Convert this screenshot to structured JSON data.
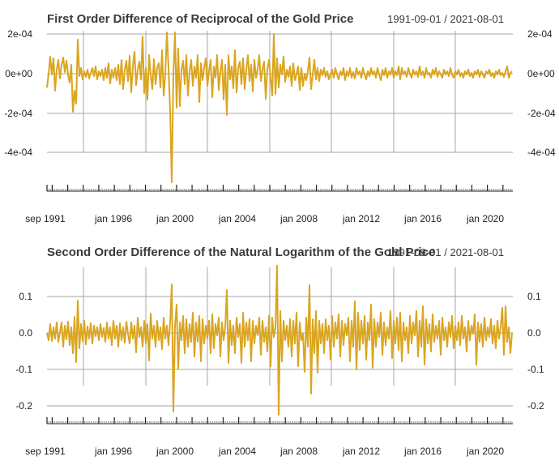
{
  "chart_data": [
    {
      "type": "line",
      "title": "First Order Difference of Reciprocal of the Gold Price",
      "date_range": "1991-09-01 / 2021-08-01",
      "x_range": [
        "1991-09-01",
        "2021-08-01"
      ],
      "x_tick_labels": [
        "sep 1991",
        "jan 1996",
        "jan 2000",
        "jan 2004",
        "jan 2008",
        "jan 2012",
        "jan 2016",
        "jan 2020"
      ],
      "y_tick_labels": [
        "2e-04",
        "0e+00",
        "-2e-04",
        "-4e-04"
      ],
      "ylim": [
        -0.00058,
        0.00021
      ],
      "grid": true,
      "color": "#DAA520",
      "key_points": [
        {
          "x": "1991-09-01",
          "y": -7e-05
        },
        {
          "x": "1993-08-01",
          "y": -0.0002
        },
        {
          "x": "1994-01-01",
          "y": 0.00017
        },
        {
          "x": "1997-11-01",
          "y": 0.00019
        },
        {
          "x": "1999-06-01",
          "y": 0.0002
        },
        {
          "x": "1999-10-01",
          "y": -0.00055
        },
        {
          "x": "2000-02-01",
          "y": 0.0002
        },
        {
          "x": "2002-12-01",
          "y": -0.00023
        },
        {
          "x": "2006-01-01",
          "y": 0.0002
        },
        {
          "x": "2021-08-01",
          "y": 1e-05
        }
      ]
    },
    {
      "type": "line",
      "title": "Second Order Difference of the Natural Logarithm of the Gold Price",
      "date_range": "1991-09-01 / 2021-08-01",
      "x_range": [
        "1991-09-01",
        "2021-08-01"
      ],
      "x_tick_labels": [
        "sep 1991",
        "jan 1996",
        "jan 2000",
        "jan 2004",
        "jan 2008",
        "jan 2012",
        "jan 2016",
        "jan 2020"
      ],
      "y_tick_labels": [
        "0.1",
        "0.0",
        "-0.1",
        "-0.2"
      ],
      "ylim": [
        -0.235,
        0.185
      ],
      "grid": true,
      "color": "#DAA520",
      "key_points": [
        {
          "x": "1993-10-01",
          "y": 0.09
        },
        {
          "x": "1999-10-01",
          "y": -0.22
        },
        {
          "x": "1999-11-01",
          "y": 0.13
        },
        {
          "x": "2006-05-01",
          "y": 0.18
        },
        {
          "x": "2006-06-01",
          "y": -0.225
        },
        {
          "x": "2008-03-01",
          "y": 0.13
        },
        {
          "x": "2008-10-01",
          "y": -0.17
        },
        {
          "x": "2013-04-01",
          "y": -0.1
        },
        {
          "x": "2020-07-01",
          "y": 0.07
        },
        {
          "x": "2021-08-01",
          "y": 0.0
        }
      ]
    }
  ]
}
